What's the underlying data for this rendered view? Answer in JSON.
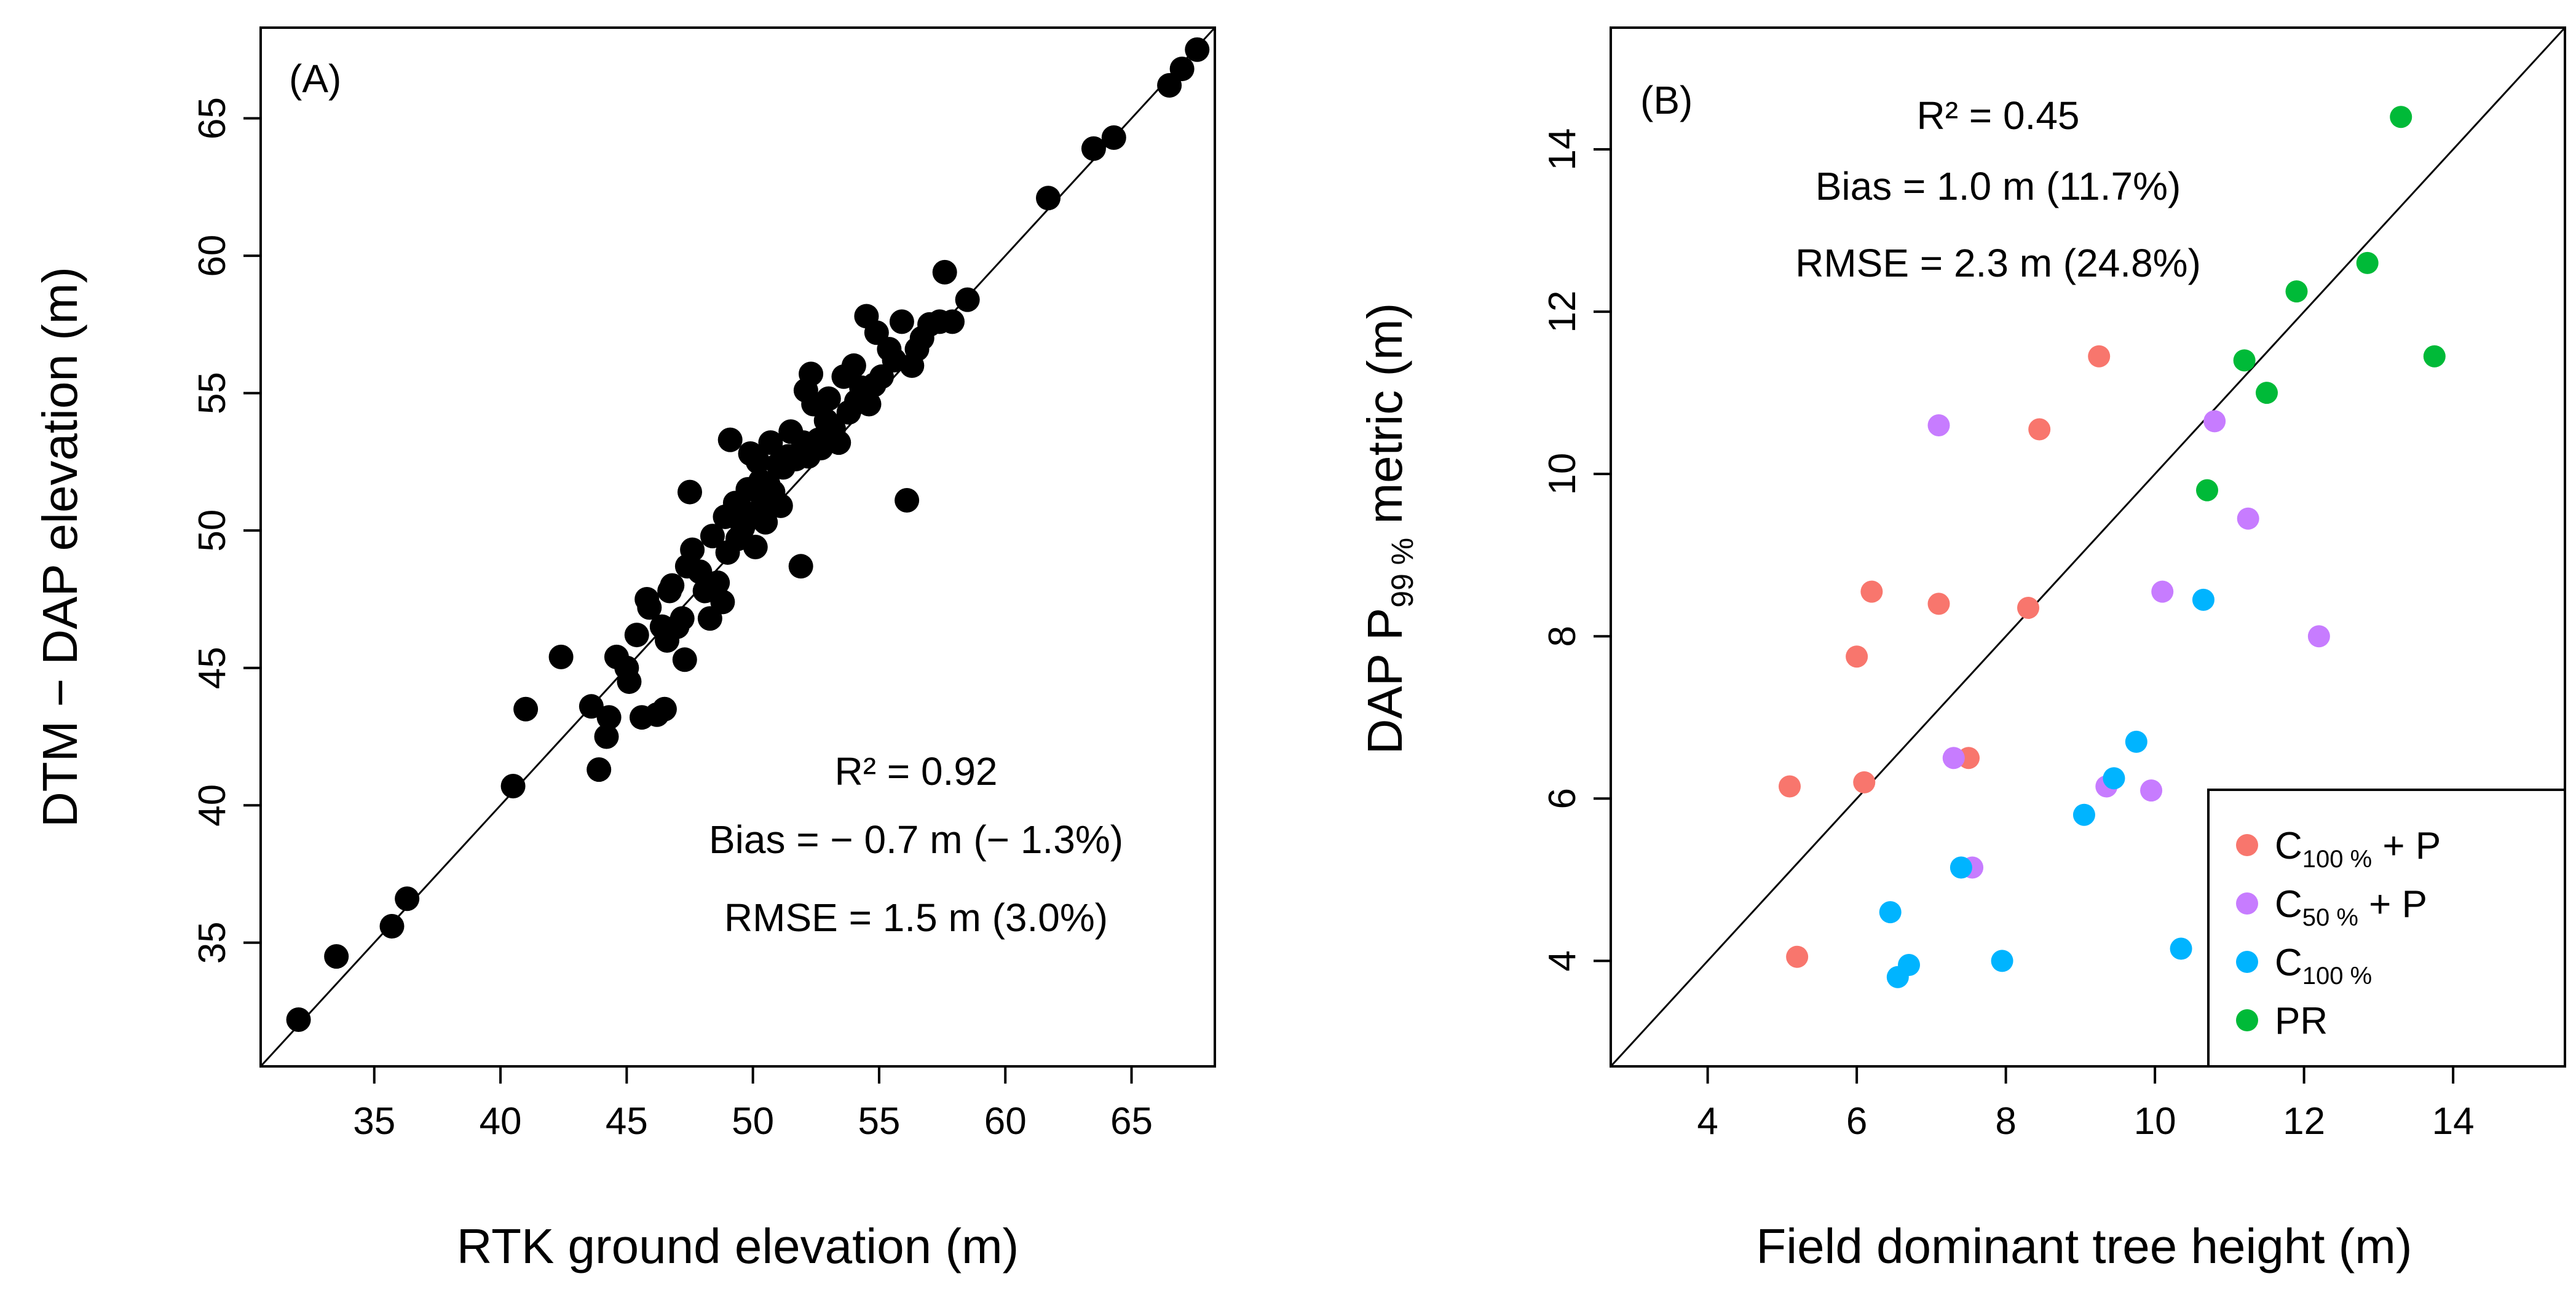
{
  "chart_data": [
    {
      "type": "scatter",
      "panel_label": "(A)",
      "xlabel": "RTK ground elevation (m)",
      "ylabel": "DTM − DAP elevation (m)",
      "xlim": [
        30.5,
        68.3
      ],
      "ylim": [
        30.5,
        68.3
      ],
      "xticks": [
        35,
        40,
        45,
        50,
        55,
        60,
        65
      ],
      "yticks": [
        35,
        40,
        45,
        50,
        55,
        60,
        65
      ],
      "reference_line": "1:1",
      "stats": {
        "r2": "R² = 0.92",
        "bias": "Bias = − 0.7 m (− 1.3%)",
        "rmse": "RMSE = 1.5 m (3.0%)"
      },
      "series": [
        {
          "color": "#000000",
          "points": [
            [
              32.0,
              32.2
            ],
            [
              33.5,
              34.5
            ],
            [
              35.7,
              35.6
            ],
            [
              36.3,
              36.6
            ],
            [
              40.5,
              40.7
            ],
            [
              41.0,
              43.5
            ],
            [
              42.4,
              45.4
            ],
            [
              43.6,
              43.6
            ],
            [
              43.9,
              41.3
            ],
            [
              44.2,
              42.5
            ],
            [
              44.3,
              43.2
            ],
            [
              44.6,
              45.4
            ],
            [
              45.0,
              45.0
            ],
            [
              45.1,
              44.5
            ],
            [
              45.4,
              46.2
            ],
            [
              45.6,
              43.2
            ],
            [
              45.8,
              47.5
            ],
            [
              45.9,
              47.2
            ],
            [
              46.2,
              43.3
            ],
            [
              46.4,
              46.5
            ],
            [
              46.5,
              43.5
            ],
            [
              46.6,
              46.0
            ],
            [
              46.7,
              47.8
            ],
            [
              46.8,
              48.0
            ],
            [
              47.0,
              46.5
            ],
            [
              47.2,
              46.8
            ],
            [
              47.3,
              45.3
            ],
            [
              47.4,
              48.7
            ],
            [
              47.5,
              51.4
            ],
            [
              47.6,
              49.3
            ],
            [
              47.9,
              48.5
            ],
            [
              48.1,
              47.8
            ],
            [
              48.3,
              46.8
            ],
            [
              48.4,
              49.8
            ],
            [
              48.6,
              48.1
            ],
            [
              48.8,
              47.4
            ],
            [
              48.9,
              50.5
            ],
            [
              49.0,
              49.2
            ],
            [
              49.1,
              53.3
            ],
            [
              49.2,
              50.6
            ],
            [
              49.3,
              51.0
            ],
            [
              49.4,
              49.7
            ],
            [
              49.5,
              50.8
            ],
            [
              49.6,
              50.1
            ],
            [
              49.7,
              50.4
            ],
            [
              49.8,
              51.5
            ],
            [
              49.9,
              52.8
            ],
            [
              50.0,
              50.6
            ],
            [
              50.1,
              49.4
            ],
            [
              50.2,
              52.5
            ],
            [
              50.3,
              51.8
            ],
            [
              50.4,
              51.0
            ],
            [
              50.5,
              50.3
            ],
            [
              50.6,
              51.7
            ],
            [
              50.7,
              53.2
            ],
            [
              50.8,
              51.4
            ],
            [
              51.0,
              52.4
            ],
            [
              51.1,
              50.9
            ],
            [
              51.2,
              52.3
            ],
            [
              51.4,
              52.7
            ],
            [
              51.5,
              53.6
            ],
            [
              51.7,
              52.6
            ],
            [
              51.9,
              48.7
            ],
            [
              52.0,
              53.2
            ],
            [
              52.1,
              55.1
            ],
            [
              52.2,
              52.7
            ],
            [
              52.3,
              55.7
            ],
            [
              52.4,
              54.6
            ],
            [
              52.6,
              53.3
            ],
            [
              52.7,
              53.0
            ],
            [
              52.9,
              54.0
            ],
            [
              53.0,
              54.8
            ],
            [
              53.2,
              53.7
            ],
            [
              53.4,
              53.2
            ],
            [
              53.6,
              55.6
            ],
            [
              53.8,
              54.3
            ],
            [
              54.0,
              56.0
            ],
            [
              54.1,
              54.7
            ],
            [
              54.3,
              55.2
            ],
            [
              54.5,
              57.8
            ],
            [
              54.6,
              54.6
            ],
            [
              54.8,
              55.3
            ],
            [
              54.9,
              57.2
            ],
            [
              55.1,
              55.6
            ],
            [
              55.4,
              56.6
            ],
            [
              55.6,
              56.2
            ],
            [
              55.9,
              57.6
            ],
            [
              56.1,
              51.1
            ],
            [
              56.3,
              56.0
            ],
            [
              56.5,
              56.6
            ],
            [
              56.7,
              57.0
            ],
            [
              57.0,
              57.5
            ],
            [
              57.4,
              57.6
            ],
            [
              57.6,
              59.4
            ],
            [
              57.9,
              57.6
            ],
            [
              58.5,
              58.4
            ],
            [
              61.7,
              62.1
            ],
            [
              63.5,
              63.9
            ],
            [
              64.3,
              64.3
            ],
            [
              66.5,
              66.2
            ],
            [
              67.0,
              66.8
            ],
            [
              67.6,
              67.5
            ]
          ]
        }
      ]
    },
    {
      "type": "scatter",
      "panel_label": "(B)",
      "xlabel": "Field dominant tree height (m)",
      "ylabel": "DAP P",
      "ylabel_subscript": "99 %",
      "ylabel_suffix": " metric (m)",
      "xlim": [
        2.7,
        15.5
      ],
      "ylim": [
        2.7,
        15.5
      ],
      "xticks": [
        4,
        6,
        8,
        10,
        12,
        14
      ],
      "yticks": [
        4,
        6,
        8,
        10,
        12,
        14
      ],
      "reference_line": "1:1",
      "stats": {
        "r2": "R² = 0.45",
        "bias": "Bias = 1.0 m (11.7%)",
        "rmse": "RMSE = 2.3 m (24.8%)"
      },
      "legend_position": "bottom-right",
      "series": [
        {
          "name": "C",
          "name_subscript": "100 %",
          "name_suffix": " + P",
          "color": "#f8766d",
          "points": [
            [
              5.1,
              6.15
            ],
            [
              5.2,
              4.05
            ],
            [
              6.0,
              7.75
            ],
            [
              6.1,
              6.2
            ],
            [
              6.2,
              8.55
            ],
            [
              7.1,
              8.4
            ],
            [
              7.5,
              6.5
            ],
            [
              8.3,
              8.35
            ],
            [
              8.45,
              10.55
            ],
            [
              9.25,
              11.45
            ]
          ]
        },
        {
          "name": "C",
          "name_subscript": "50 %",
          "name_suffix": " + P",
          "color": "#c77cff",
          "points": [
            [
              7.1,
              10.6
            ],
            [
              7.3,
              6.5
            ],
            [
              7.55,
              5.15
            ],
            [
              9.35,
              6.15
            ],
            [
              9.95,
              6.1
            ],
            [
              10.1,
              8.55
            ],
            [
              10.8,
              10.65
            ],
            [
              11.25,
              9.45
            ],
            [
              12.2,
              8.0
            ]
          ]
        },
        {
          "name": "C",
          "name_subscript": "100 %",
          "name_suffix": "",
          "color": "#00b4ff",
          "points": [
            [
              6.45,
              4.6
            ],
            [
              6.55,
              3.8
            ],
            [
              6.7,
              3.95
            ],
            [
              7.4,
              5.15
            ],
            [
              7.95,
              4.0
            ],
            [
              9.05,
              5.8
            ],
            [
              9.45,
              6.25
            ],
            [
              9.75,
              6.7
            ],
            [
              10.35,
              4.15
            ],
            [
              10.65,
              8.45
            ]
          ]
        },
        {
          "name": "PR",
          "color": "#00ba38",
          "points": [
            [
              10.7,
              9.8
            ],
            [
              11.2,
              11.4
            ],
            [
              11.5,
              11.0
            ],
            [
              11.9,
              12.25
            ],
            [
              12.85,
              12.6
            ],
            [
              13.3,
              14.4
            ],
            [
              13.75,
              11.45
            ]
          ]
        }
      ]
    }
  ]
}
